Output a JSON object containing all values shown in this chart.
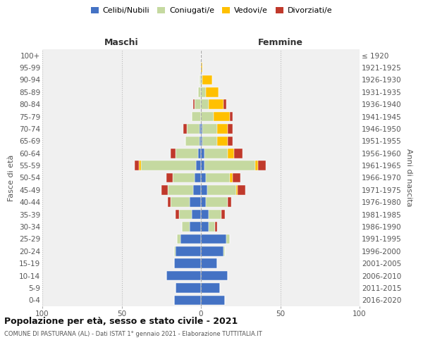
{
  "age_groups": [
    "0-4",
    "5-9",
    "10-14",
    "15-19",
    "20-24",
    "25-29",
    "30-34",
    "35-39",
    "40-44",
    "45-49",
    "50-54",
    "55-59",
    "60-64",
    "65-69",
    "70-74",
    "75-79",
    "80-84",
    "85-89",
    "90-94",
    "95-99",
    "100+"
  ],
  "birth_years": [
    "2016-2020",
    "2011-2015",
    "2006-2010",
    "2001-2005",
    "1996-2000",
    "1991-1995",
    "1986-1990",
    "1981-1985",
    "1976-1980",
    "1971-1975",
    "1966-1970",
    "1961-1965",
    "1956-1960",
    "1951-1955",
    "1946-1950",
    "1941-1945",
    "1936-1940",
    "1931-1935",
    "1926-1930",
    "1921-1925",
    "≤ 1920"
  ],
  "males": {
    "celibi": [
      17,
      16,
      22,
      17,
      16,
      13,
      7,
      6,
      7,
      5,
      4,
      3,
      2,
      1,
      1,
      0,
      0,
      0,
      0,
      0,
      0
    ],
    "coniugati": [
      0,
      0,
      0,
      0,
      1,
      2,
      5,
      8,
      12,
      16,
      14,
      35,
      14,
      9,
      8,
      6,
      4,
      2,
      1,
      0,
      0
    ],
    "vedovi": [
      0,
      0,
      0,
      0,
      0,
      0,
      0,
      0,
      0,
      0,
      0,
      1,
      0,
      0,
      0,
      0,
      0,
      0,
      0,
      0,
      0
    ],
    "divorziati": [
      0,
      0,
      0,
      0,
      0,
      0,
      0,
      2,
      2,
      4,
      4,
      3,
      3,
      0,
      2,
      0,
      1,
      0,
      0,
      0,
      0
    ]
  },
  "females": {
    "nubili": [
      15,
      12,
      17,
      10,
      14,
      16,
      5,
      5,
      3,
      4,
      3,
      2,
      2,
      1,
      1,
      0,
      0,
      0,
      0,
      0,
      0
    ],
    "coniugate": [
      0,
      0,
      0,
      0,
      1,
      2,
      4,
      8,
      14,
      18,
      15,
      32,
      15,
      9,
      9,
      8,
      5,
      3,
      1,
      0,
      0
    ],
    "vedove": [
      0,
      0,
      0,
      0,
      0,
      0,
      0,
      0,
      0,
      1,
      2,
      2,
      4,
      7,
      7,
      10,
      9,
      8,
      6,
      1,
      0
    ],
    "divorziate": [
      0,
      0,
      0,
      0,
      0,
      0,
      1,
      2,
      2,
      5,
      5,
      5,
      5,
      3,
      3,
      2,
      2,
      0,
      0,
      0,
      0
    ]
  },
  "colors": {
    "celibi": "#4472c4",
    "coniugati": "#c5d9a0",
    "vedovi": "#ffc000",
    "divorziati": "#c0392b"
  },
  "title": "Popolazione per età, sesso e stato civile - 2021",
  "subtitle": "COMUNE DI PASTURANA (AL) - Dati ISTAT 1° gennaio 2021 - Elaborazione TUTTITALIA.IT",
  "xlabel_left": "Maschi",
  "xlabel_right": "Femmine",
  "ylabel_left": "Fasce di età",
  "ylabel_right": "Anni di nascita",
  "xlim": 100,
  "legend_labels": [
    "Celibi/Nubili",
    "Coniugati/e",
    "Vedovi/e",
    "Divorziati/e"
  ],
  "bg_color": "#f0f0f0"
}
